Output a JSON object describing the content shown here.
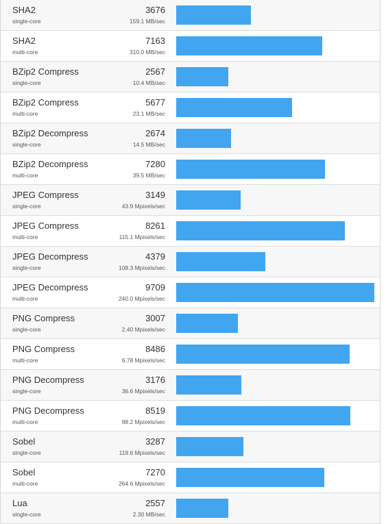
{
  "colors": {
    "bar": "#42a5ef",
    "row_alt": "#f7f7f7",
    "border": "#dcdcdc"
  },
  "max_score": 9709,
  "rows": [
    {
      "name": "SHA2",
      "mode": "single-core",
      "score": "3676",
      "rate": "159.1 MB/sec",
      "value": 3676
    },
    {
      "name": "SHA2",
      "mode": "multi-core",
      "score": "7163",
      "rate": "310.0 MB/sec",
      "value": 7163
    },
    {
      "name": "BZip2 Compress",
      "mode": "single-core",
      "score": "2567",
      "rate": "10.4 MB/sec",
      "value": 2567
    },
    {
      "name": "BZip2 Compress",
      "mode": "multi-core",
      "score": "5677",
      "rate": "23.1 MB/sec",
      "value": 5677
    },
    {
      "name": "BZip2 Decompress",
      "mode": "single-core",
      "score": "2674",
      "rate": "14.5 MB/sec",
      "value": 2674
    },
    {
      "name": "BZip2 Decompress",
      "mode": "multi-core",
      "score": "7280",
      "rate": "39.5 MB/sec",
      "value": 7280
    },
    {
      "name": "JPEG Compress",
      "mode": "single-core",
      "score": "3149",
      "rate": "43.9 Mpixels/sec",
      "value": 3149
    },
    {
      "name": "JPEG Compress",
      "mode": "multi-core",
      "score": "8261",
      "rate": "115.1 Mpixels/sec",
      "value": 8261
    },
    {
      "name": "JPEG Decompress",
      "mode": "single-core",
      "score": "4379",
      "rate": "108.3 Mpixels/sec",
      "value": 4379
    },
    {
      "name": "JPEG Decompress",
      "mode": "multi-core",
      "score": "9709",
      "rate": "240.0 Mpixels/sec",
      "value": 9709
    },
    {
      "name": "PNG Compress",
      "mode": "single-core",
      "score": "3007",
      "rate": "2.40 Mpixels/sec",
      "value": 3007
    },
    {
      "name": "PNG Compress",
      "mode": "multi-core",
      "score": "8486",
      "rate": "6.78 Mpixels/sec",
      "value": 8486
    },
    {
      "name": "PNG Decompress",
      "mode": "single-core",
      "score": "3176",
      "rate": "36.6 Mpixels/sec",
      "value": 3176
    },
    {
      "name": "PNG Decompress",
      "mode": "multi-core",
      "score": "8519",
      "rate": "98.2 Mpixels/sec",
      "value": 8519
    },
    {
      "name": "Sobel",
      "mode": "single-core",
      "score": "3287",
      "rate": "119.6 Mpixels/sec",
      "value": 3287
    },
    {
      "name": "Sobel",
      "mode": "multi-core",
      "score": "7270",
      "rate": "264.6 Mpixels/sec",
      "value": 7270
    },
    {
      "name": "Lua",
      "mode": "single-core",
      "score": "2557",
      "rate": "2.30 MB/sec",
      "value": 2557
    }
  ]
}
